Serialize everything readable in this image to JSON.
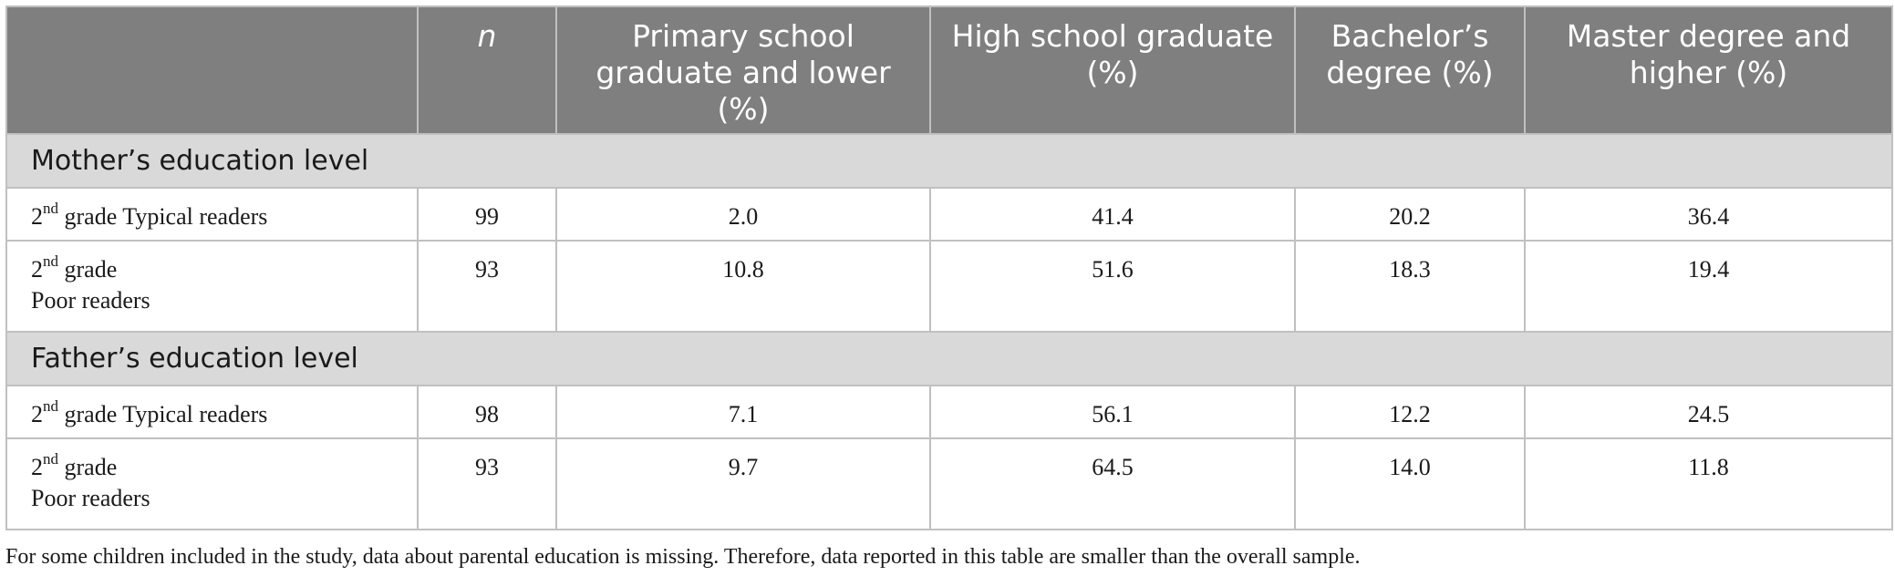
{
  "table": {
    "headers": [
      "",
      "n",
      "Primary school graduate and lower (%)",
      "High school graduate (%)",
      "Bachelor’s degree (%)",
      "Master degree and higher (%)"
    ],
    "sections": [
      {
        "title": "Mother’s education level",
        "rows": [
          {
            "grade": "2",
            "sup": "nd",
            "label_rest": " grade Typical readers",
            "label_line2": "",
            "values": [
              "99",
              "2.0",
              "41.4",
              "20.2",
              "36.4"
            ]
          },
          {
            "grade": "2",
            "sup": "nd",
            "label_rest": " grade",
            "label_line2": "Poor readers",
            "values": [
              "93",
              "10.8",
              "51.6",
              "18.3",
              "19.4"
            ]
          }
        ]
      },
      {
        "title": "Father’s education level",
        "rows": [
          {
            "grade": "2",
            "sup": "nd",
            "label_rest": " grade Typical readers",
            "label_line2": "",
            "values": [
              "98",
              "7.1",
              "56.1",
              "12.2",
              "24.5"
            ]
          },
          {
            "grade": "2",
            "sup": "nd",
            "label_rest": " grade",
            "label_line2": "Poor readers",
            "values": [
              "93",
              "9.7",
              "64.5",
              "14.0",
              "11.8"
            ]
          }
        ]
      }
    ]
  },
  "footnote": "For some children included in the study, data about parental education is missing. Therefore, data reported in this table are smaller than the overall sample."
}
